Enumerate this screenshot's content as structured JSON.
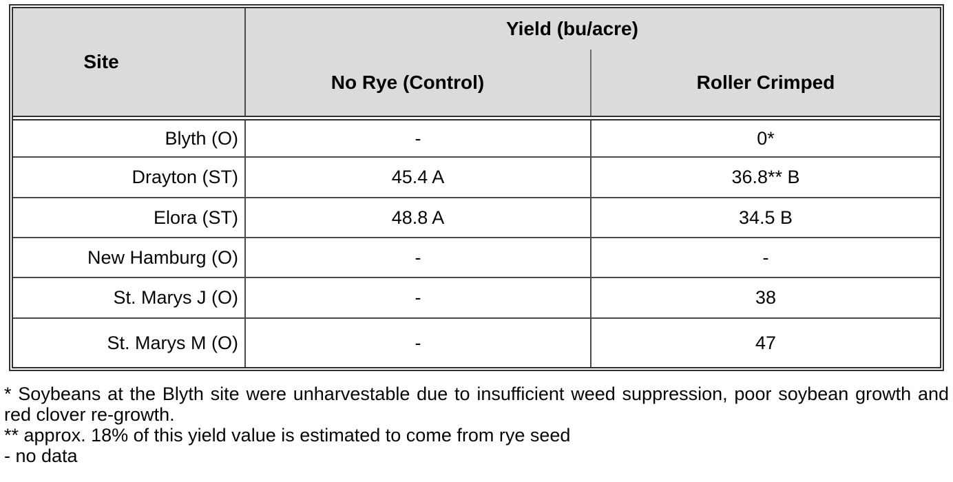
{
  "table": {
    "header": {
      "site_label": "Site",
      "yield_group_label": "Yield (bu/acre)",
      "col_no_rye": "No Rye (Control)",
      "col_roller_crimped": "Roller Crimped"
    },
    "rows": [
      {
        "site": "Blyth (O)",
        "no_rye": "-",
        "roller_crimped": "0*"
      },
      {
        "site": "Drayton (ST)",
        "no_rye": "45.4 A",
        "roller_crimped": "36.8** B"
      },
      {
        "site": "Elora (ST)",
        "no_rye": "48.8 A",
        "roller_crimped": "34.5 B"
      },
      {
        "site": "New Hamburg (O)",
        "no_rye": "-",
        "roller_crimped": "-"
      },
      {
        "site": "St. Marys J (O)",
        "no_rye": "-",
        "roller_crimped": "38"
      },
      {
        "site": "St. Marys M (O)",
        "no_rye": "-",
        "roller_crimped": "47"
      }
    ]
  },
  "footnotes": [
    "* Soybeans at the Blyth site were unharvestable due to insufficient weed suppression, poor soybean growth and red clover re-growth.",
    "** approx. 18% of this yield value is estimated to come from rye seed",
    "- no data"
  ],
  "colors": {
    "header_fill": "#dbdbdb",
    "outer_border": "#2f2f2f",
    "grid_line": "#4a4a4a"
  }
}
